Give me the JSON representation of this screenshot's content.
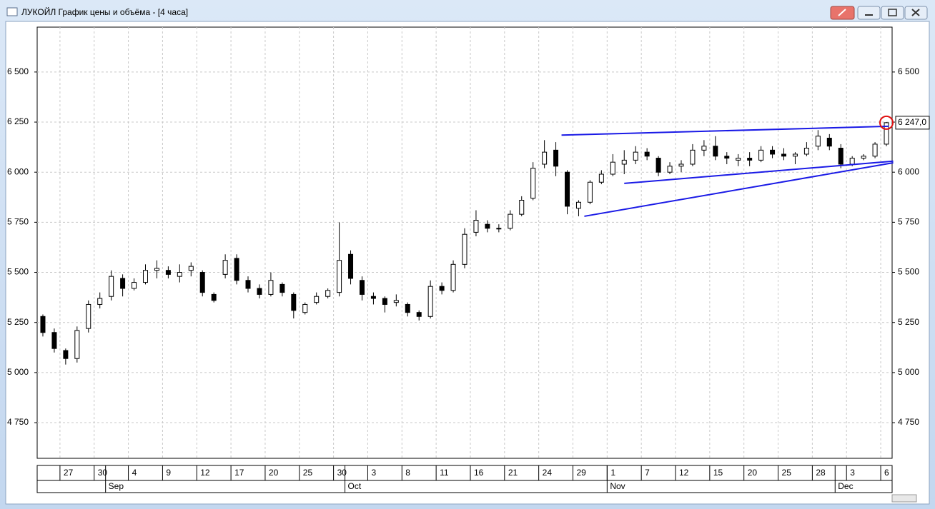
{
  "chart_data": {
    "type": "candlestick",
    "title": "ЛУКОЙЛ График цены и объёма - [4 часа]",
    "months": [
      {
        "name": null,
        "days": [
          null,
          null,
          "27",
          null,
          null,
          "30"
        ]
      },
      {
        "name": "Sep",
        "days": [
          null,
          null,
          "4",
          null,
          null,
          "9",
          null,
          null,
          "12",
          null,
          null,
          "17",
          null,
          null,
          "20",
          null,
          null,
          "25",
          null,
          null,
          "30"
        ]
      },
      {
        "name": "Oct",
        "days": [
          null,
          null,
          "3",
          null,
          null,
          "8",
          null,
          null,
          "11",
          null,
          null,
          "16",
          null,
          null,
          "21",
          null,
          null,
          "24",
          null,
          null,
          "29",
          null,
          null
        ]
      },
      {
        "name": "Nov",
        "days": [
          "1",
          null,
          null,
          "7",
          null,
          null,
          "12",
          null,
          null,
          "15",
          null,
          null,
          "20",
          null,
          null,
          "25",
          null,
          null,
          "28",
          null
        ]
      },
      {
        "name": "Dec",
        "days": [
          null,
          "3",
          null,
          null,
          "6"
        ]
      }
    ],
    "open": [
      5280,
      5200,
      5110,
      5070,
      5220,
      5340,
      5380,
      5470,
      5420,
      5450,
      5510,
      5510,
      5480,
      5510,
      5500,
      5390,
      5490,
      5570,
      5460,
      5420,
      5390,
      5440,
      5390,
      5300,
      5350,
      5380,
      5400,
      5590,
      5460,
      5380,
      5370,
      5350,
      5340,
      5300,
      5280,
      5430,
      5410,
      5540,
      5700,
      5740,
      5720,
      5720,
      5790,
      5870,
      6040,
      6110,
      6000,
      5820,
      5850,
      5950,
      5990,
      6040,
      6060,
      6100,
      6070,
      6000,
      6030,
      6040,
      6110,
      6130,
      6080,
      6060,
      6070,
      6060,
      6110,
      6090,
      6080,
      6090,
      6130,
      6170,
      6120,
      6040,
      6070,
      6080,
      6140
    ],
    "high": [
      5290,
      5220,
      5120,
      5230,
      5360,
      5400,
      5510,
      5490,
      5470,
      5540,
      5560,
      5530,
      5540,
      5550,
      5510,
      5400,
      5590,
      5590,
      5480,
      5440,
      5500,
      5450,
      5400,
      5350,
      5400,
      5420,
      5750,
      5610,
      5480,
      5400,
      5380,
      5390,
      5350,
      5310,
      5460,
      5450,
      5560,
      5720,
      5810,
      5760,
      5740,
      5810,
      5880,
      6050,
      6160,
      6150,
      6010,
      5860,
      5960,
      6010,
      6090,
      6110,
      6130,
      6120,
      6080,
      6050,
      6060,
      6140,
      6160,
      6180,
      6100,
      6090,
      6100,
      6130,
      6130,
      6120,
      6100,
      6150,
      6210,
      6190,
      6140,
      6080,
      6090,
      6150,
      6250
    ],
    "low": [
      5180,
      5100,
      5040,
      5050,
      5200,
      5320,
      5360,
      5380,
      5410,
      5440,
      5470,
      5470,
      5450,
      5480,
      5380,
      5350,
      5470,
      5440,
      5400,
      5370,
      5380,
      5380,
      5270,
      5290,
      5340,
      5370,
      5380,
      5440,
      5360,
      5340,
      5300,
      5330,
      5280,
      5260,
      5270,
      5390,
      5400,
      5520,
      5680,
      5700,
      5700,
      5710,
      5780,
      5860,
      6020,
      5980,
      5790,
      5780,
      5840,
      5940,
      5980,
      5990,
      6040,
      6060,
      5980,
      5990,
      6000,
      6030,
      6080,
      6060,
      6040,
      6030,
      6030,
      6050,
      6070,
      6060,
      6040,
      6080,
      6110,
      6110,
      6020,
      6030,
      6060,
      6070,
      6130
    ],
    "close": [
      5200,
      5120,
      5070,
      5210,
      5340,
      5370,
      5480,
      5420,
      5450,
      5510,
      5520,
      5490,
      5500,
      5530,
      5400,
      5360,
      5560,
      5460,
      5420,
      5390,
      5460,
      5400,
      5310,
      5340,
      5380,
      5410,
      5560,
      5470,
      5390,
      5370,
      5340,
      5360,
      5300,
      5280,
      5430,
      5410,
      5540,
      5690,
      5760,
      5720,
      5720,
      5790,
      5860,
      6020,
      6100,
      6030,
      5830,
      5850,
      5950,
      5990,
      6050,
      6060,
      6100,
      6080,
      6000,
      6030,
      6040,
      6110,
      6130,
      6080,
      6070,
      6070,
      6060,
      6110,
      6090,
      6080,
      6090,
      6120,
      6180,
      6130,
      6040,
      6070,
      6080,
      6140,
      6247
    ],
    "ylim": [
      4572,
      6724
    ],
    "yticks": [
      {
        "value": 4750,
        "label": "4 750"
      },
      {
        "value": 5000,
        "label": "5 000"
      },
      {
        "value": 5250,
        "label": "5 250"
      },
      {
        "value": 5500,
        "label": "5 500"
      },
      {
        "value": 5750,
        "label": "5 750"
      },
      {
        "value": 6000,
        "label": "6 000"
      },
      {
        "value": 6250,
        "label": "6 250"
      },
      {
        "value": 6500,
        "label": "6 500"
      }
    ],
    "last_price": {
      "value": 6247,
      "label": "6 247,0"
    },
    "trend_lines": [
      {
        "x": [
          45.5,
          74.2
        ],
        "y": [
          6185,
          6229
        ]
      },
      {
        "x": [
          51,
          74.6
        ],
        "y": [
          5944,
          6055
        ]
      },
      {
        "x": [
          47.5,
          74.6
        ],
        "y": [
          5780,
          6047
        ]
      }
    ],
    "trend_color": "#1a1ae6",
    "grid": true
  }
}
